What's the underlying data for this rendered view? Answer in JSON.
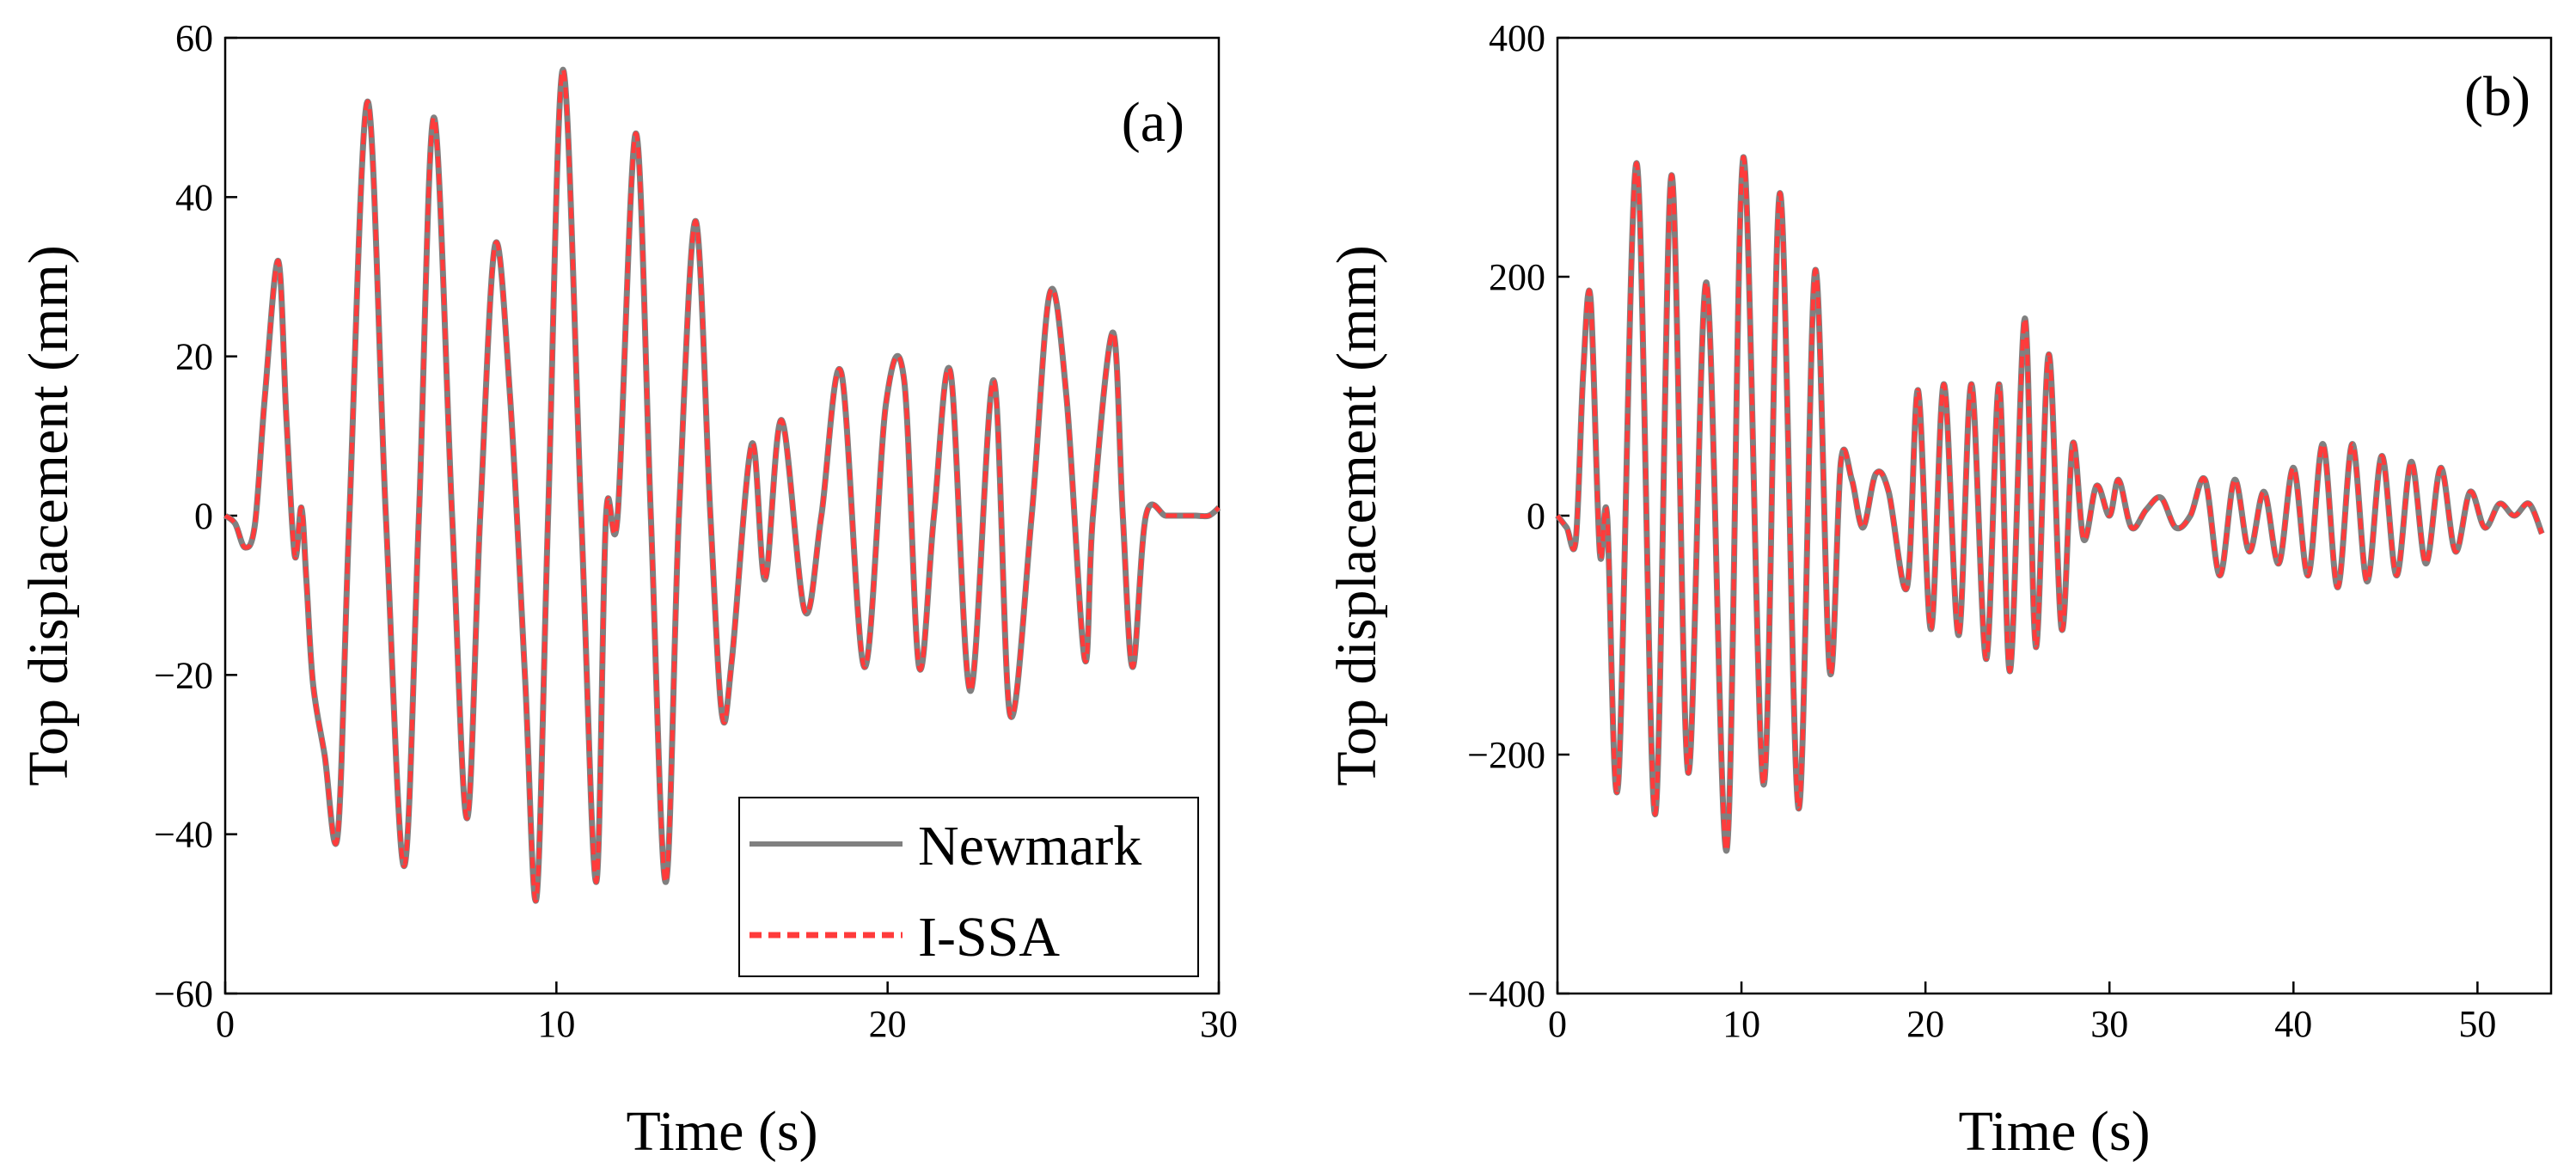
{
  "colors": {
    "newmark": "#808080",
    "issa": "#ff3b3b",
    "axis": "#000000"
  },
  "chart_data": [
    {
      "type": "line",
      "panel_label": "(a)",
      "xlabel": "Time (s)",
      "ylabel": "Top displacement (mm)",
      "xlim": [
        0,
        30
      ],
      "ylim": [
        -60,
        60
      ],
      "xticks": [
        0,
        10,
        20,
        30
      ],
      "xtick_labels": [
        "0",
        "10",
        "20",
        "30"
      ],
      "yticks": [
        -60,
        -40,
        -20,
        0,
        20,
        40,
        60
      ],
      "ytick_labels": [
        "−60",
        "−40",
        "−20",
        "0",
        "20",
        "40",
        "60"
      ],
      "legend": {
        "position": "bottom-right",
        "entries": [
          "Newmark",
          "I-SSA"
        ]
      },
      "series": [
        {
          "name": "Newmark",
          "style": "solid"
        },
        {
          "name": "I-SSA",
          "style": "dashed"
        }
      ],
      "x": [
        0,
        0.3,
        0.6,
        0.9,
        1.2,
        1.6,
        1.85,
        2.1,
        2.3,
        2.45,
        2.65,
        3.0,
        3.4,
        3.75,
        4.3,
        4.85,
        5.4,
        5.85,
        6.3,
        6.85,
        7.3,
        7.7,
        8.15,
        8.6,
        9.05,
        9.4,
        9.75,
        10.2,
        10.75,
        11.2,
        11.5,
        11.85,
        12.4,
        12.85,
        13.3,
        13.7,
        14.2,
        14.65,
        15.0,
        15.3,
        15.9,
        16.3,
        16.8,
        17.5,
        18.0,
        18.6,
        19.3,
        19.95,
        20.5,
        20.95,
        21.4,
        21.9,
        22.5,
        23.2,
        23.7,
        24.35,
        24.9,
        25.4,
        25.95,
        26.2,
        26.8,
        27.1,
        27.4,
        27.8,
        28.4,
        28.9,
        29.3,
        29.7,
        30.0
      ],
      "values": [
        0,
        -1,
        -4,
        -1,
        15,
        32,
        12,
        -5,
        1,
        -8,
        -21,
        -30,
        -40,
        0,
        52,
        0,
        -44,
        0,
        50,
        0,
        -38,
        0,
        34,
        15,
        -20,
        -48,
        0,
        56,
        0,
        -46,
        0,
        0,
        48,
        0,
        -46,
        0,
        37,
        0,
        -25,
        -18,
        9,
        -8,
        12,
        -12,
        0,
        18,
        -19,
        14,
        17,
        -19,
        0,
        18,
        -22,
        17,
        -25,
        0,
        28,
        15,
        -18,
        0,
        23,
        0,
        -19,
        0,
        0,
        0,
        0,
        0,
        1
      ]
    },
    {
      "type": "line",
      "panel_label": "(b)",
      "xlabel": "Time (s)",
      "ylabel": "Top displacement (mm)",
      "xlim": [
        0,
        54
      ],
      "ylim": [
        -400,
        400
      ],
      "xticks": [
        0,
        10,
        20,
        30,
        40,
        50
      ],
      "xtick_labels": [
        "0",
        "10",
        "20",
        "30",
        "40",
        "50"
      ],
      "yticks": [
        -400,
        -200,
        0,
        200,
        400
      ],
      "ytick_labels": [
        "−400",
        "−200",
        "0",
        "200",
        "400"
      ],
      "series": [
        {
          "name": "Newmark",
          "style": "solid"
        },
        {
          "name": "I-SSA",
          "style": "dashed"
        }
      ],
      "x": [
        0,
        0.5,
        1.0,
        1.4,
        1.8,
        2.3,
        2.7,
        3.3,
        4.3,
        5.3,
        6.2,
        7.1,
        8.1,
        9.2,
        10.1,
        11.2,
        12.1,
        13.1,
        14.0,
        14.8,
        15.4,
        16.0,
        16.6,
        17.3,
        18.0,
        19.0,
        19.6,
        20.3,
        21.0,
        21.8,
        22.5,
        23.3,
        24.0,
        24.6,
        25.4,
        26.0,
        26.7,
        27.4,
        28.0,
        28.6,
        29.3,
        30.0,
        30.5,
        31.2,
        32.0,
        32.8,
        33.6,
        34.4,
        35.2,
        36.0,
        36.8,
        37.6,
        38.4,
        39.2,
        40.0,
        40.8,
        41.6,
        42.4,
        43.2,
        44.0,
        44.8,
        45.6,
        46.4,
        47.2,
        48.0,
        48.8,
        49.6,
        50.4,
        51.2,
        52.0,
        52.8,
        53.5
      ],
      "values": [
        0,
        -10,
        -20,
        120,
        182,
        -30,
        0,
        -225,
        295,
        -250,
        285,
        -215,
        195,
        -280,
        300,
        -225,
        270,
        -245,
        205,
        -130,
        45,
        30,
        -10,
        35,
        20,
        -60,
        105,
        -95,
        110,
        -100,
        110,
        -120,
        110,
        -130,
        165,
        -110,
        135,
        -95,
        60,
        -20,
        25,
        0,
        30,
        -10,
        5,
        15,
        -10,
        0,
        30,
        -50,
        30,
        -30,
        20,
        -40,
        40,
        -50,
        60,
        -60,
        60,
        -55,
        50,
        -50,
        45,
        -40,
        40,
        -30,
        20,
        -10,
        10,
        0,
        10,
        -15
      ]
    }
  ]
}
